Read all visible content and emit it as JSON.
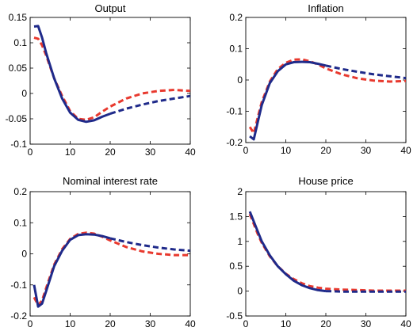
{
  "chart_data": [
    {
      "type": "line",
      "title": "Output",
      "xlim": [
        0,
        40
      ],
      "ylim": [
        -0.1,
        0.15
      ],
      "xticks": [
        0,
        10,
        20,
        30,
        40
      ],
      "yticks": [
        -0.1,
        -0.05,
        0,
        0.05,
        0.1,
        0.15
      ],
      "xtick_labels": [
        "0",
        "10",
        "20",
        "30",
        "40"
      ],
      "ytick_labels": [
        "-0.1",
        "-0.05",
        "0",
        "0.05",
        "0.1",
        "0.15"
      ],
      "grid": false,
      "series": [
        {
          "color": "#1f2a8a",
          "style": "solid-then-dashed",
          "split_x": 20,
          "x": [
            1,
            2,
            3,
            4,
            6,
            8,
            10,
            12,
            14,
            16,
            18,
            20,
            24,
            28,
            32,
            36,
            40
          ],
          "y": [
            0.132,
            0.133,
            0.11,
            0.08,
            0.03,
            -0.01,
            -0.038,
            -0.052,
            -0.056,
            -0.053,
            -0.046,
            -0.04,
            -0.03,
            -0.022,
            -0.015,
            -0.01,
            -0.005
          ]
        },
        {
          "color": "#e8392e",
          "style": "dashed",
          "x": [
            1,
            2,
            3,
            4,
            6,
            8,
            10,
            12,
            14,
            16,
            18,
            20,
            24,
            28,
            32,
            36,
            40
          ],
          "y": [
            0.11,
            0.108,
            0.095,
            0.075,
            0.03,
            -0.005,
            -0.035,
            -0.05,
            -0.052,
            -0.047,
            -0.036,
            -0.026,
            -0.01,
            0.0,
            0.005,
            0.007,
            0.005
          ]
        }
      ]
    },
    {
      "type": "line",
      "title": "Inflation",
      "xlim": [
        0,
        40
      ],
      "ylim": [
        -0.2,
        0.2
      ],
      "xticks": [
        0,
        10,
        20,
        30,
        40
      ],
      "yticks": [
        -0.2,
        -0.1,
        0,
        0.1,
        0.2
      ],
      "xtick_labels": [
        "0",
        "10",
        "20",
        "30",
        "40"
      ],
      "ytick_labels": [
        "-0.2",
        "-0.1",
        "0",
        "0.1",
        "0.2"
      ],
      "grid": false,
      "series": [
        {
          "color": "#1f2a8a",
          "style": "solid-then-dashed",
          "split_x": 20,
          "x": [
            1,
            2,
            3,
            4,
            6,
            8,
            10,
            12,
            14,
            16,
            18,
            20,
            24,
            28,
            32,
            36,
            40
          ],
          "y": [
            -0.18,
            -0.19,
            -0.135,
            -0.08,
            -0.01,
            0.028,
            0.05,
            0.057,
            0.058,
            0.057,
            0.052,
            0.046,
            0.035,
            0.026,
            0.018,
            0.012,
            0.006
          ]
        },
        {
          "color": "#e8392e",
          "style": "dashed",
          "x": [
            1,
            2,
            3,
            4,
            6,
            8,
            10,
            12,
            14,
            16,
            18,
            20,
            24,
            28,
            32,
            36,
            40
          ],
          "y": [
            -0.15,
            -0.17,
            -0.12,
            -0.07,
            -0.005,
            0.035,
            0.055,
            0.065,
            0.066,
            0.06,
            0.05,
            0.037,
            0.018,
            0.005,
            -0.002,
            -0.005,
            -0.003
          ]
        }
      ]
    },
    {
      "type": "line",
      "title": "Nominal interest rate",
      "xlim": [
        0,
        40
      ],
      "ylim": [
        -0.2,
        0.2
      ],
      "xticks": [
        0,
        10,
        20,
        30,
        40
      ],
      "yticks": [
        -0.2,
        -0.1,
        0,
        0.1,
        0.2
      ],
      "xtick_labels": [
        "0",
        "10",
        "20",
        "30",
        "40"
      ],
      "ytick_labels": [
        "-0.2",
        "-0.1",
        "0",
        "0.1",
        "0.2"
      ],
      "grid": false,
      "series": [
        {
          "color": "#1f2a8a",
          "style": "solid-then-dashed",
          "split_x": 20,
          "x": [
            1,
            2,
            3,
            4,
            6,
            8,
            10,
            12,
            14,
            16,
            18,
            20,
            24,
            28,
            32,
            36,
            40
          ],
          "y": [
            -0.1,
            -0.17,
            -0.16,
            -0.12,
            -0.04,
            0.01,
            0.045,
            0.06,
            0.063,
            0.062,
            0.057,
            0.05,
            0.038,
            0.028,
            0.02,
            0.014,
            0.01
          ]
        },
        {
          "color": "#e8392e",
          "style": "dashed",
          "x": [
            1,
            2,
            3,
            4,
            6,
            8,
            10,
            12,
            14,
            16,
            18,
            20,
            24,
            28,
            32,
            36,
            40
          ],
          "y": [
            -0.14,
            -0.165,
            -0.15,
            -0.11,
            -0.035,
            0.015,
            0.048,
            0.064,
            0.068,
            0.065,
            0.055,
            0.043,
            0.022,
            0.008,
            0.0,
            -0.004,
            -0.004
          ]
        }
      ]
    },
    {
      "type": "line",
      "title": "House price",
      "xlim": [
        0,
        40
      ],
      "ylim": [
        -0.5,
        2
      ],
      "xticks": [
        0,
        10,
        20,
        30,
        40
      ],
      "yticks": [
        -0.5,
        0,
        0.5,
        1,
        1.5,
        2
      ],
      "xtick_labels": [
        "0",
        "10",
        "20",
        "30",
        "40"
      ],
      "ytick_labels": [
        "-0.5",
        "0",
        "0.5",
        "1",
        "1.5",
        "2"
      ],
      "grid": false,
      "series": [
        {
          "color": "#1f2a8a",
          "style": "solid-then-dashed",
          "split_x": 20,
          "x": [
            1,
            2,
            3,
            4,
            6,
            8,
            10,
            12,
            14,
            16,
            18,
            20,
            24,
            28,
            32,
            36,
            40
          ],
          "y": [
            1.6,
            1.4,
            1.2,
            1.0,
            0.72,
            0.5,
            0.34,
            0.21,
            0.12,
            0.06,
            0.02,
            0.0,
            -0.01,
            -0.01,
            -0.01,
            -0.01,
            -0.01
          ]
        },
        {
          "color": "#e8392e",
          "style": "dashed",
          "x": [
            1,
            2,
            3,
            4,
            6,
            8,
            10,
            12,
            14,
            16,
            18,
            20,
            24,
            28,
            32,
            36,
            40
          ],
          "y": [
            1.55,
            1.35,
            1.15,
            0.97,
            0.7,
            0.5,
            0.35,
            0.24,
            0.16,
            0.1,
            0.07,
            0.05,
            0.03,
            0.02,
            0.01,
            0.01,
            0.01
          ]
        }
      ]
    }
  ]
}
